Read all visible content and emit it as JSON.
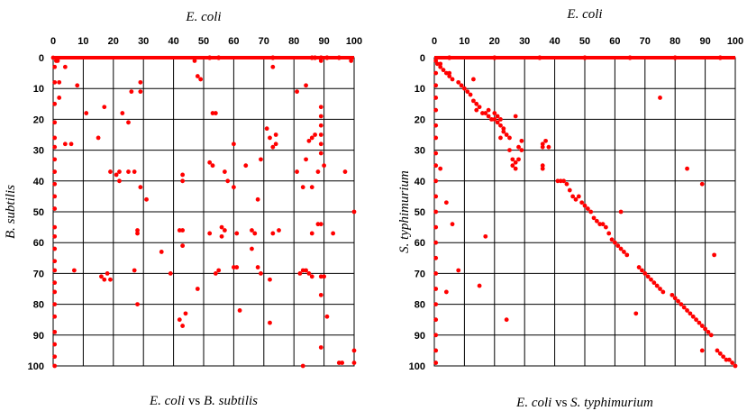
{
  "chart_data": [
    {
      "type": "scatter",
      "top_label": "E. coli",
      "ylabel": "B. subtilis",
      "caption": {
        "a": "E. coli",
        "vs": "vs",
        "b": "B. subtilis"
      },
      "xlim": [
        0,
        100
      ],
      "ylim": [
        0,
        100
      ],
      "ticks": [
        0,
        10,
        20,
        30,
        40,
        50,
        60,
        70,
        80,
        90,
        100
      ],
      "y_inverted": true,
      "grid": true,
      "marker_color": "#ff0000",
      "points": [
        [
          0,
          0
        ],
        [
          0.5,
          3
        ],
        [
          0.5,
          8
        ],
        [
          0.5,
          15
        ],
        [
          0.5,
          21
        ],
        [
          0.5,
          26
        ],
        [
          0.5,
          29
        ],
        [
          0.5,
          33
        ],
        [
          0.5,
          37
        ],
        [
          0.5,
          41
        ],
        [
          0.5,
          45
        ],
        [
          0.5,
          49
        ],
        [
          0.5,
          55
        ],
        [
          0.5,
          58
        ],
        [
          0.5,
          62
        ],
        [
          0.5,
          66
        ],
        [
          0.5,
          69
        ],
        [
          0.5,
          73
        ],
        [
          0.5,
          76
        ],
        [
          0.5,
          80
        ],
        [
          0.5,
          84
        ],
        [
          0.5,
          89
        ],
        [
          0.5,
          93
        ],
        [
          0.5,
          97
        ],
        [
          0.5,
          100
        ],
        [
          1,
          1
        ],
        [
          1.5,
          1
        ],
        [
          2,
          8
        ],
        [
          2,
          13
        ],
        [
          4,
          3
        ],
        [
          4,
          28
        ],
        [
          6,
          28
        ],
        [
          7,
          69
        ],
        [
          8,
          9
        ],
        [
          11,
          18
        ],
        [
          15,
          26
        ],
        [
          17,
          16
        ],
        [
          16,
          71
        ],
        [
          17,
          72
        ],
        [
          18,
          70
        ],
        [
          19,
          72
        ],
        [
          19,
          37
        ],
        [
          21,
          38
        ],
        [
          22,
          40
        ],
        [
          22,
          37
        ],
        [
          23,
          18
        ],
        [
          25,
          21
        ],
        [
          25,
          37
        ],
        [
          26,
          11
        ],
        [
          27,
          37
        ],
        [
          28,
          57
        ],
        [
          28,
          56
        ],
        [
          27,
          69
        ],
        [
          28,
          80
        ],
        [
          29,
          8
        ],
        [
          29,
          11
        ],
        [
          29,
          42
        ],
        [
          31,
          46
        ],
        [
          36,
          63
        ],
        [
          39,
          70
        ],
        [
          42,
          85
        ],
        [
          43,
          87
        ],
        [
          44,
          83
        ],
        [
          42,
          56
        ],
        [
          43,
          56
        ],
        [
          43,
          61
        ],
        [
          43,
          38
        ],
        [
          43,
          40
        ],
        [
          47,
          1
        ],
        [
          48,
          6
        ],
        [
          49,
          7
        ],
        [
          48,
          75
        ],
        [
          52,
          34
        ],
        [
          53,
          18
        ],
        [
          54,
          18
        ],
        [
          53,
          35
        ],
        [
          54,
          70
        ],
        [
          55,
          69
        ],
        [
          56,
          58
        ],
        [
          57,
          37
        ],
        [
          58,
          40
        ],
        [
          56,
          55
        ],
        [
          57,
          56
        ],
        [
          52,
          57
        ],
        [
          60,
          42
        ],
        [
          60,
          28
        ],
        [
          60,
          68
        ],
        [
          61,
          68
        ],
        [
          61,
          57
        ],
        [
          62,
          82
        ],
        [
          64,
          35
        ],
        [
          66,
          56
        ],
        [
          66,
          62
        ],
        [
          67,
          57
        ],
        [
          68,
          46
        ],
        [
          68,
          68
        ],
        [
          69,
          70
        ],
        [
          69,
          33
        ],
        [
          71,
          23
        ],
        [
          72,
          26
        ],
        [
          72,
          72
        ],
        [
          72,
          86
        ],
        [
          73,
          29
        ],
        [
          73,
          3
        ],
        [
          73,
          57
        ],
        [
          74,
          28
        ],
        [
          74,
          25
        ],
        [
          75,
          56
        ],
        [
          81,
          11
        ],
        [
          81,
          37
        ],
        [
          82,
          70
        ],
        [
          83,
          69
        ],
        [
          83,
          42
        ],
        [
          83,
          100
        ],
        [
          84,
          9
        ],
        [
          84,
          33
        ],
        [
          84,
          69
        ],
        [
          85,
          70
        ],
        [
          85,
          27
        ],
        [
          86,
          26
        ],
        [
          86,
          42
        ],
        [
          86,
          57
        ],
        [
          86,
          71
        ],
        [
          87,
          25
        ],
        [
          88,
          54
        ],
        [
          88,
          37
        ],
        [
          89,
          1
        ],
        [
          89,
          19
        ],
        [
          89,
          16
        ],
        [
          89,
          22
        ],
        [
          89,
          25
        ],
        [
          89,
          28
        ],
        [
          89,
          31
        ],
        [
          89,
          54
        ],
        [
          89,
          77
        ],
        [
          89,
          94
        ],
        [
          89,
          71
        ],
        [
          90,
          35
        ],
        [
          90,
          71
        ],
        [
          91,
          84
        ],
        [
          93,
          57
        ],
        [
          95,
          99
        ],
        [
          96,
          99
        ],
        [
          97,
          37
        ],
        [
          99,
          1
        ],
        [
          100,
          50
        ],
        [
          100,
          95
        ],
        [
          100,
          99
        ]
      ],
      "top_row_points": [
        52,
        55,
        73,
        86,
        87,
        89,
        91,
        95
      ]
    },
    {
      "type": "scatter",
      "top_label": "E. coli",
      "ylabel": "S. typhimurium",
      "caption": {
        "a": "E. coli",
        "vs": "vs",
        "b": "S. typhimurium"
      },
      "xlim": [
        0,
        100
      ],
      "ylim": [
        0,
        100
      ],
      "ticks": [
        0,
        10,
        20,
        30,
        40,
        50,
        60,
        70,
        80,
        90,
        100
      ],
      "y_inverted": true,
      "grid": true,
      "marker_color": "#ff0000",
      "points": [
        [
          0.5,
          1
        ],
        [
          0.5,
          5
        ],
        [
          0.5,
          9
        ],
        [
          0.5,
          13
        ],
        [
          0.5,
          17
        ],
        [
          0.5,
          22
        ],
        [
          0.5,
          26
        ],
        [
          0.5,
          31
        ],
        [
          0.5,
          35
        ],
        [
          0.5,
          40
        ],
        [
          0.5,
          45
        ],
        [
          0.5,
          50
        ],
        [
          0.5,
          55
        ],
        [
          0.5,
          60
        ],
        [
          0.5,
          65
        ],
        [
          0.5,
          70
        ],
        [
          0.5,
          75
        ],
        [
          0.5,
          80
        ],
        [
          0.5,
          85
        ],
        [
          0.5,
          90
        ],
        [
          0.5,
          95
        ],
        [
          0.5,
          99
        ],
        [
          1,
          2
        ],
        [
          2,
          2
        ],
        [
          2,
          3
        ],
        [
          3,
          4
        ],
        [
          4,
          5
        ],
        [
          5,
          5
        ],
        [
          5,
          6
        ],
        [
          6,
          7
        ],
        [
          2,
          36
        ],
        [
          4,
          47
        ],
        [
          4,
          76
        ],
        [
          6,
          54
        ],
        [
          8,
          69
        ],
        [
          8,
          8
        ],
        [
          9,
          9
        ],
        [
          10,
          10
        ],
        [
          11,
          11
        ],
        [
          12,
          12
        ],
        [
          13,
          7
        ],
        [
          13,
          14
        ],
        [
          14,
          17
        ],
        [
          14,
          15
        ],
        [
          15,
          16
        ],
        [
          15,
          74
        ],
        [
          16,
          18
        ],
        [
          17,
          18
        ],
        [
          17,
          58
        ],
        [
          18,
          19
        ],
        [
          18,
          17
        ],
        [
          19,
          20
        ],
        [
          20,
          18
        ],
        [
          20,
          20
        ],
        [
          21,
          21
        ],
        [
          21,
          19
        ],
        [
          22,
          22
        ],
        [
          22,
          20
        ],
        [
          22,
          26
        ],
        [
          23,
          23
        ],
        [
          23,
          24
        ],
        [
          24,
          25
        ],
        [
          24,
          85
        ],
        [
          25,
          26
        ],
        [
          25,
          30
        ],
        [
          26,
          35
        ],
        [
          26,
          33
        ],
        [
          27,
          34
        ],
        [
          27,
          36
        ],
        [
          28,
          33
        ],
        [
          28,
          29
        ],
        [
          29,
          27
        ],
        [
          29,
          30
        ],
        [
          27,
          19
        ],
        [
          36,
          28
        ],
        [
          36,
          29
        ],
        [
          37,
          27
        ],
        [
          38,
          29
        ],
        [
          36,
          36
        ],
        [
          36,
          35
        ],
        [
          41,
          40
        ],
        [
          42,
          40
        ],
        [
          43,
          40
        ],
        [
          44,
          41
        ],
        [
          45,
          43
        ],
        [
          46,
          45
        ],
        [
          47,
          46
        ],
        [
          48,
          45
        ],
        [
          49,
          47
        ],
        [
          50,
          48
        ],
        [
          51,
          49
        ],
        [
          52,
          50
        ],
        [
          53,
          52
        ],
        [
          54,
          53
        ],
        [
          55,
          54
        ],
        [
          56,
          54
        ],
        [
          57,
          55
        ],
        [
          58,
          57
        ],
        [
          59,
          59
        ],
        [
          60,
          60
        ],
        [
          61,
          61
        ],
        [
          62,
          50
        ],
        [
          62,
          62
        ],
        [
          63,
          63
        ],
        [
          64,
          64
        ],
        [
          67,
          83
        ],
        [
          68,
          68
        ],
        [
          69,
          69
        ],
        [
          70,
          70
        ],
        [
          71,
          71
        ],
        [
          72,
          72
        ],
        [
          73,
          73
        ],
        [
          74,
          74
        ],
        [
          75,
          13
        ],
        [
          75,
          75
        ],
        [
          76,
          76
        ],
        [
          79,
          77
        ],
        [
          80,
          78
        ],
        [
          81,
          79
        ],
        [
          82,
          80
        ],
        [
          83,
          81
        ],
        [
          84,
          82
        ],
        [
          85,
          83
        ],
        [
          86,
          84
        ],
        [
          87,
          85
        ],
        [
          88,
          86
        ],
        [
          89,
          87
        ],
        [
          90,
          88
        ],
        [
          91,
          89
        ],
        [
          92,
          90
        ],
        [
          89,
          41
        ],
        [
          84,
          36
        ],
        [
          89,
          95
        ],
        [
          93,
          64
        ],
        [
          94,
          95
        ],
        [
          95,
          96
        ],
        [
          96,
          97
        ],
        [
          97,
          98
        ],
        [
          98,
          98
        ],
        [
          99,
          99
        ],
        [
          100,
          100
        ]
      ],
      "top_row_points": [
        5,
        20,
        35,
        50,
        65,
        80,
        95
      ]
    }
  ]
}
